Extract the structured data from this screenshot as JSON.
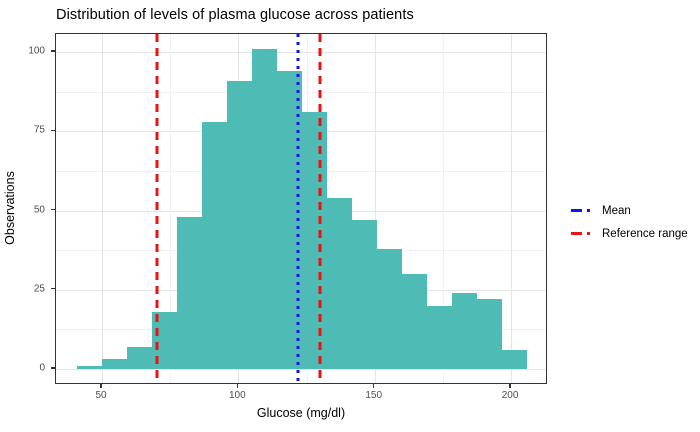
{
  "title": "Distribution of levels of plasma glucose across patients",
  "axes": {
    "x": {
      "label": "Glucose (mg/dl)",
      "ticks": [
        50,
        100,
        150,
        200
      ],
      "minor_ticks": [
        75,
        125,
        175
      ],
      "range": [
        38,
        213
      ]
    },
    "y": {
      "label": "Observations",
      "ticks": [
        0,
        25,
        50,
        75,
        100
      ],
      "minor_ticks": [
        12.5,
        37.5,
        62.5,
        87.5
      ],
      "range": [
        -5,
        106
      ]
    }
  },
  "legend": {
    "items": [
      {
        "label": "Mean",
        "color": "#1414EE",
        "pattern": "dash-dot"
      },
      {
        "label": "Reference range",
        "color": "#EE1111",
        "pattern": "dash-dot"
      }
    ]
  },
  "chart_data": {
    "type": "bar",
    "subtype": "histogram",
    "title": "Distribution of levels of plasma glucose across patients",
    "xlabel": "Glucose (mg/dl)",
    "ylabel": "Observations",
    "bin_start": 40.8,
    "bin_width": 9.17,
    "counts": [
      1,
      3,
      7,
      18,
      48,
      78,
      91,
      101,
      94,
      81,
      54,
      47,
      38,
      30,
      20,
      24,
      22,
      6
    ],
    "bar_color": "#4EBCB4",
    "xlim": [
      38,
      213
    ],
    "ylim": [
      0,
      106
    ],
    "grid": true,
    "legend_position": "right",
    "vlines": [
      {
        "name": "mean",
        "x": 122,
        "color": "#1414EE",
        "style": "dotted",
        "legend": "Mean"
      },
      {
        "name": "reference-low",
        "x": 70,
        "color": "#EE1111",
        "style": "dashed",
        "legend": "Reference range"
      },
      {
        "name": "reference-high",
        "x": 130,
        "color": "#EE1111",
        "style": "dashed",
        "legend": "Reference range"
      }
    ]
  }
}
